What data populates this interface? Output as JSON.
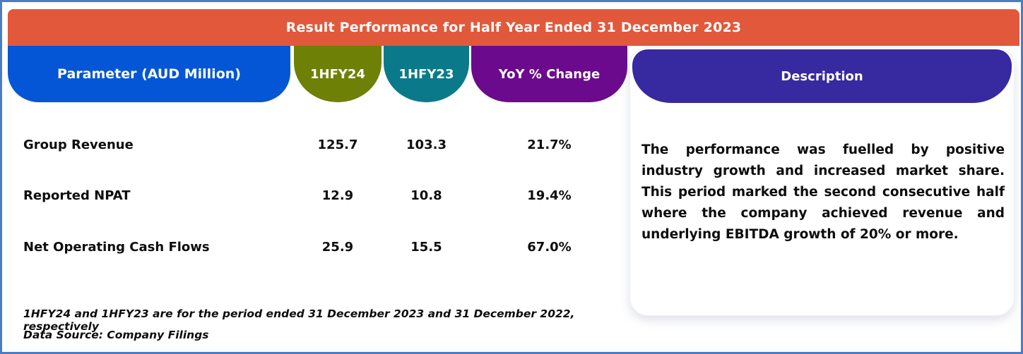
{
  "banner": {
    "title": "Result Performance for Half Year Ended 31 December 2023",
    "bg": "#E2583B"
  },
  "colors": {
    "frame_border": "#4C7CC4",
    "parameter_pill": "#0556D6",
    "hfy24_pill": "#6F8006",
    "hfy23_pill": "#0A7A8A",
    "yoy_pill": "#6B0A8C",
    "description_pill": "#37299F"
  },
  "table": {
    "columns": [
      {
        "key": "parameter",
        "label": "Parameter (AUD Million)"
      },
      {
        "key": "hfy24",
        "label": "1HFY24"
      },
      {
        "key": "hfy23",
        "label": "1HFY23"
      },
      {
        "key": "yoy",
        "label": "YoY % Change"
      }
    ],
    "rows": [
      {
        "parameter": "Group Revenue",
        "hfy24": "125.7",
        "hfy23": "103.3",
        "yoy": "21.7%"
      },
      {
        "parameter": "Reported NPAT",
        "hfy24": "12.9",
        "hfy23": "10.8",
        "yoy": "19.4%"
      },
      {
        "parameter": "Net Operating Cash Flows",
        "hfy24": "25.9",
        "hfy23": "15.5",
        "yoy": "67.0%"
      }
    ]
  },
  "description": {
    "label": "Description",
    "text": "The performance was fuelled by positive industry growth and increased market share. This period marked the second consecutive half where the company achieved revenue and underlying EBITDA growth of 20% or more."
  },
  "footnotes": [
    "1HFY24 and 1HFY23 are for the period ended 31 December 2023 and 31 December 2022, respectively",
    "Data Source: Company Filings"
  ],
  "chart_data": {
    "type": "table",
    "title": "Result Performance for Half Year Ended 31 December 2023",
    "columns": [
      "Parameter (AUD Million)",
      "1HFY24",
      "1HFY23",
      "YoY % Change"
    ],
    "rows": [
      [
        "Group Revenue",
        125.7,
        103.3,
        "21.7%"
      ],
      [
        "Reported NPAT",
        12.9,
        10.8,
        "19.4%"
      ],
      [
        "Net Operating Cash Flows",
        25.9,
        15.5,
        "67.0%"
      ]
    ],
    "description": "The performance was fuelled by positive industry growth and increased market share. This period marked the second consecutive half where the company achieved revenue and underlying EBITDA growth of 20% or more.",
    "notes": [
      "1HFY24 and 1HFY23 are for the period ended 31 December 2023 and 31 December 2022, respectively",
      "Data Source: Company Filings"
    ]
  }
}
